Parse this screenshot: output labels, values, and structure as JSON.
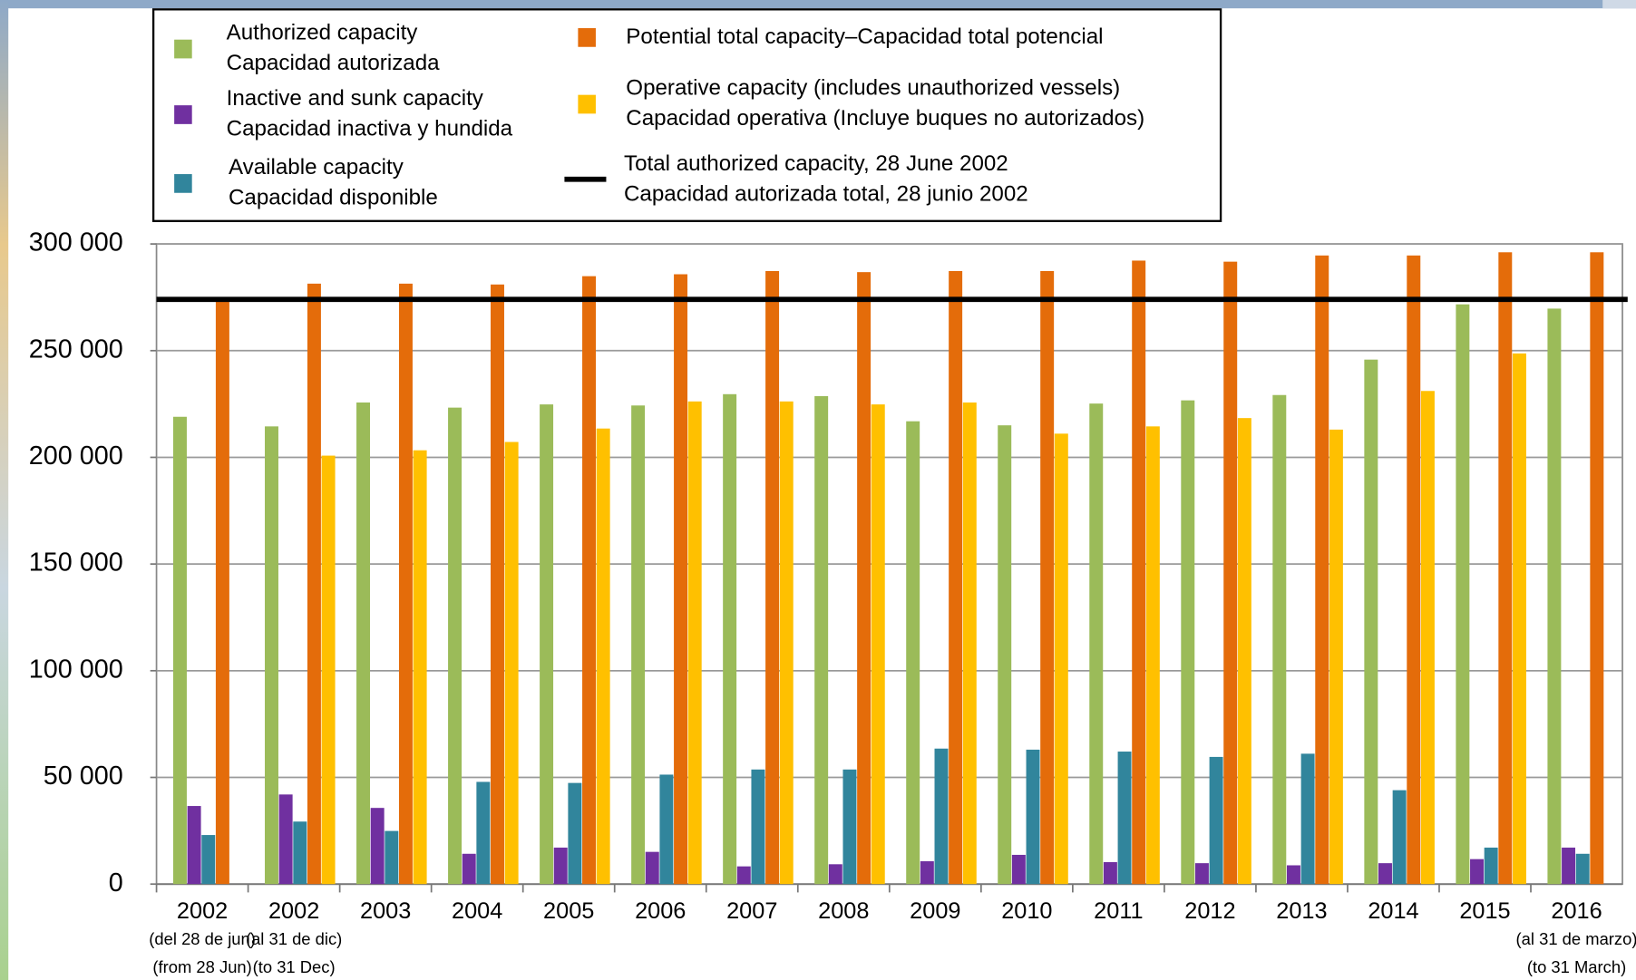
{
  "chart_data": {
    "type": "bar",
    "categories": [
      [
        "2002",
        "(del 28 de jun)",
        "(from 28 Jun)"
      ],
      [
        "2002",
        "(al 31 de dic)",
        "(to 31 Dec)"
      ],
      [
        "2003"
      ],
      [
        "2004"
      ],
      [
        "2005"
      ],
      [
        "2006"
      ],
      [
        "2007"
      ],
      [
        "2008"
      ],
      [
        "2009"
      ],
      [
        "2010"
      ],
      [
        "2011"
      ],
      [
        "2012"
      ],
      [
        "2013"
      ],
      [
        "2014"
      ],
      [
        "2015"
      ],
      [
        "2016",
        "(al 31 de marzo)",
        "(to 31 March)"
      ]
    ],
    "series": [
      {
        "name": [
          "Authorized capacity",
          "Capacidad autorizada"
        ],
        "color": "#9bbb59",
        "values": [
          219000,
          214500,
          225700,
          223300,
          224800,
          224300,
          229600,
          228700,
          216900,
          215000,
          225200,
          226700,
          229200,
          245800,
          271700,
          269700
        ]
      },
      {
        "name": [
          "Inactive and sunk capacity",
          "Capacidad inactiva y hundida"
        ],
        "color": "#7030a0",
        "values": [
          36600,
          42000,
          35700,
          14200,
          17100,
          15100,
          8300,
          9300,
          10700,
          13700,
          10300,
          9800,
          8800,
          9800,
          11700,
          17100
        ]
      },
      {
        "name": [
          "Available capacity",
          "Capacidad disponible"
        ],
        "color": "#31859c",
        "values": [
          23000,
          29300,
          24900,
          47900,
          47400,
          51300,
          53700,
          53700,
          63500,
          63000,
          62100,
          59600,
          61100,
          44000,
          17100,
          14200
        ]
      },
      {
        "name": [
          "Potential total capacity–Capacidad total potencial"
        ],
        "color": "#e46c0a",
        "values": [
          273000,
          281400,
          281400,
          281000,
          284900,
          285800,
          287300,
          286800,
          287300,
          287300,
          292200,
          291700,
          294600,
          294600,
          296100,
          296100
        ]
      },
      {
        "name": [
          "Operative capacity (includes unauthorized vessels)",
          "Capacidad operativa (Incluye buques no autorizados)"
        ],
        "color": "#ffc000",
        "values": [
          null,
          200800,
          203300,
          207200,
          213500,
          226200,
          226200,
          224800,
          225700,
          211100,
          214500,
          218400,
          213000,
          231100,
          248700,
          null
        ]
      }
    ],
    "reference_line": {
      "name": [
        "Total authorized capacity, 28 June 2002",
        "Capacidad autorizada total, 28 junio 2002"
      ],
      "value": 274000,
      "color": "#000000"
    },
    "ylim": [
      0,
      300000
    ],
    "yticks": [
      0,
      {
        "value": 50000,
        "label": "50 000"
      },
      {
        "value": 100000,
        "label": "100 000"
      },
      {
        "value": 150000,
        "label": "150 000"
      },
      {
        "value": 200000,
        "label": "200 000"
      },
      {
        "value": 250000,
        "label": "250 000"
      },
      {
        "value": 300000,
        "label": "300 000"
      }
    ],
    "grid": true
  }
}
